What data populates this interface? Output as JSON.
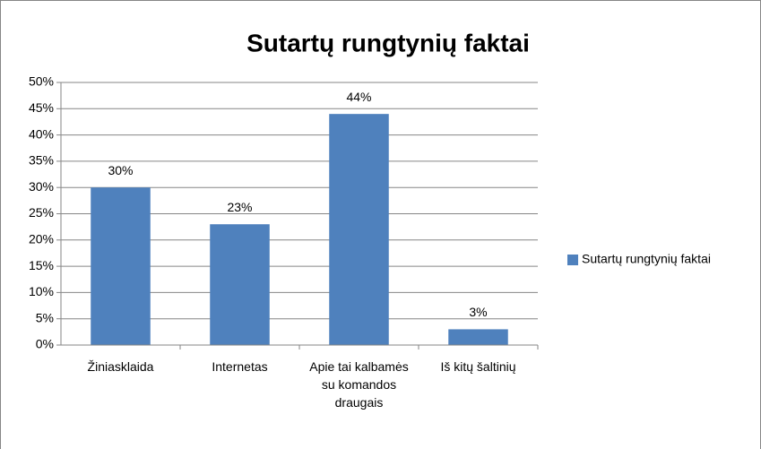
{
  "chart_data": {
    "type": "bar",
    "title": "Sutartų rungtynių faktai",
    "categories": [
      "Žiniasklaida",
      "Internetas",
      "Apie tai kalbamės su komandos draugais",
      "Iš kitų šaltinių"
    ],
    "series": [
      {
        "name": "Sutartų rungtynių faktai",
        "color": "#4f81bd",
        "values": [
          30,
          23,
          44,
          3
        ],
        "value_labels": [
          "30%",
          "23%",
          "44%",
          "3%"
        ]
      }
    ],
    "ylim": [
      0,
      50
    ],
    "yticks": [
      {
        "value": 0,
        "label": "0%"
      },
      {
        "value": 5,
        "label": "5%"
      },
      {
        "value": 10,
        "label": "10%"
      },
      {
        "value": 15,
        "label": "15%"
      },
      {
        "value": 20,
        "label": "20%"
      },
      {
        "value": 25,
        "label": "25%"
      },
      {
        "value": 30,
        "label": "30%"
      },
      {
        "value": 35,
        "label": "35%"
      },
      {
        "value": 40,
        "label": "40%"
      },
      {
        "value": 45,
        "label": "45%"
      },
      {
        "value": 50,
        "label": "50%"
      }
    ],
    "grid": true,
    "legend": "right"
  }
}
